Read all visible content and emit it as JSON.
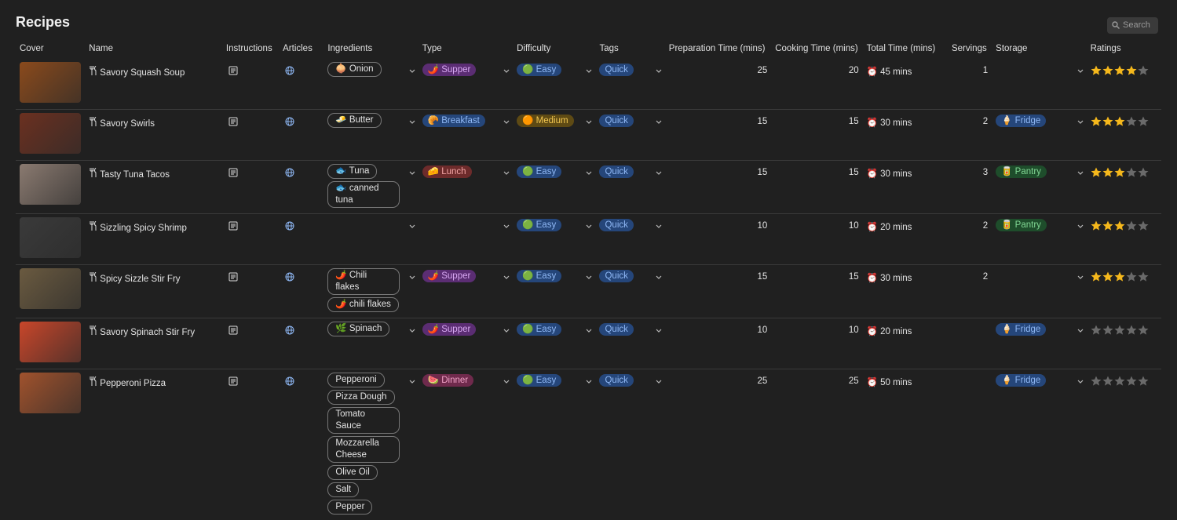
{
  "header": {
    "title": "Recipes",
    "search": "Search"
  },
  "table": {
    "columns": [
      "Cover",
      "Name",
      "Instructions",
      "Articles",
      "Ingredients",
      "Type",
      "Difficulty",
      "Tags",
      "Preparation Time (mins)",
      "Cooking Time (mins)",
      "Total Time (mins)",
      "Servings",
      "Storage",
      "Ratings"
    ],
    "rows": [
      {
        "cover": "#8a4a1c",
        "name": "Savory Squash Soup",
        "ingredients": [
          "🧅 Onion"
        ],
        "type": {
          "label": "🌶️ Supper",
          "color": "purple"
        },
        "difficulty": {
          "label": "🟢 Easy",
          "color": "blue"
        },
        "tags": {
          "label": "Quick",
          "color": "blue"
        },
        "prep": 25,
        "cook": 20,
        "total": "⏰ 45 mins",
        "servings": 1,
        "storage": null,
        "rating": 4
      },
      {
        "cover": "#6b3020",
        "name": "Savory Swirls",
        "ingredients": [
          "🧈 Butter"
        ],
        "type": {
          "label": "🥐 Breakfast",
          "color": "blue"
        },
        "difficulty": {
          "label": "🟠 Medium",
          "color": "amber"
        },
        "tags": {
          "label": "Quick",
          "color": "blue"
        },
        "prep": 15,
        "cook": 15,
        "total": "⏰ 30 mins",
        "servings": 2,
        "storage": {
          "label": "🍦 Fridge",
          "color": "blue"
        },
        "rating": 3
      },
      {
        "cover": "#8a7a70",
        "name": "Tasty Tuna Tacos",
        "ingredients": [
          "🐟 Tuna",
          "🐟 canned tuna"
        ],
        "type": {
          "label": "🧀 Lunch",
          "color": "red"
        },
        "difficulty": {
          "label": "🟢 Easy",
          "color": "blue"
        },
        "tags": {
          "label": "Quick",
          "color": "blue"
        },
        "prep": 15,
        "cook": 15,
        "total": "⏰ 30 mins",
        "servings": 3,
        "storage": {
          "label": "🥫 Pantry",
          "color": "green"
        },
        "rating": 3
      },
      {
        "cover": "#3a3a3a",
        "name": "Sizzling Spicy Shrimp",
        "ingredients": [],
        "type": null,
        "difficulty": {
          "label": "🟢 Easy",
          "color": "blue"
        },
        "tags": {
          "label": "Quick",
          "color": "blue"
        },
        "prep": 10,
        "cook": 10,
        "total": "⏰ 20 mins",
        "servings": 2,
        "storage": {
          "label": "🥫 Pantry",
          "color": "green"
        },
        "rating": 3
      },
      {
        "cover": "#6a5a40",
        "name": "Spicy Sizzle Stir Fry",
        "ingredients": [
          "🌶️ Chili flakes",
          "🌶️ chili flakes"
        ],
        "type": {
          "label": "🌶️ Supper",
          "color": "purple"
        },
        "difficulty": {
          "label": "🟢 Easy",
          "color": "blue"
        },
        "tags": {
          "label": "Quick",
          "color": "blue"
        },
        "prep": 15,
        "cook": 15,
        "total": "⏰ 30 mins",
        "servings": 2,
        "storage": null,
        "rating": 3
      },
      {
        "cover": "#c8462a",
        "name": "Savory Spinach Stir Fry",
        "ingredients": [
          "🌿 Spinach"
        ],
        "type": {
          "label": "🌶️ Supper",
          "color": "purple"
        },
        "difficulty": {
          "label": "🟢 Easy",
          "color": "blue"
        },
        "tags": {
          "label": "Quick",
          "color": "blue"
        },
        "prep": 10,
        "cook": 10,
        "total": "⏰ 20 mins",
        "servings": null,
        "storage": {
          "label": "🍦 Fridge",
          "color": "blue"
        },
        "rating": 0
      },
      {
        "cover": "#a0522d",
        "name": "Pepperoni Pizza",
        "ingredients": [
          "Pepperoni",
          "Pizza Dough",
          "Tomato Sauce",
          "Mozzarella Cheese",
          "Olive Oil",
          "Salt",
          "Pepper"
        ],
        "type": {
          "label": "🍉 Dinner",
          "color": "pink"
        },
        "difficulty": {
          "label": "🟢 Easy",
          "color": "blue"
        },
        "tags": {
          "label": "Quick",
          "color": "blue"
        },
        "prep": 25,
        "cook": 25,
        "total": "⏰ 50 mins",
        "servings": null,
        "storage": {
          "label": "🍦 Fridge",
          "color": "blue"
        },
        "rating": 0
      }
    ]
  }
}
